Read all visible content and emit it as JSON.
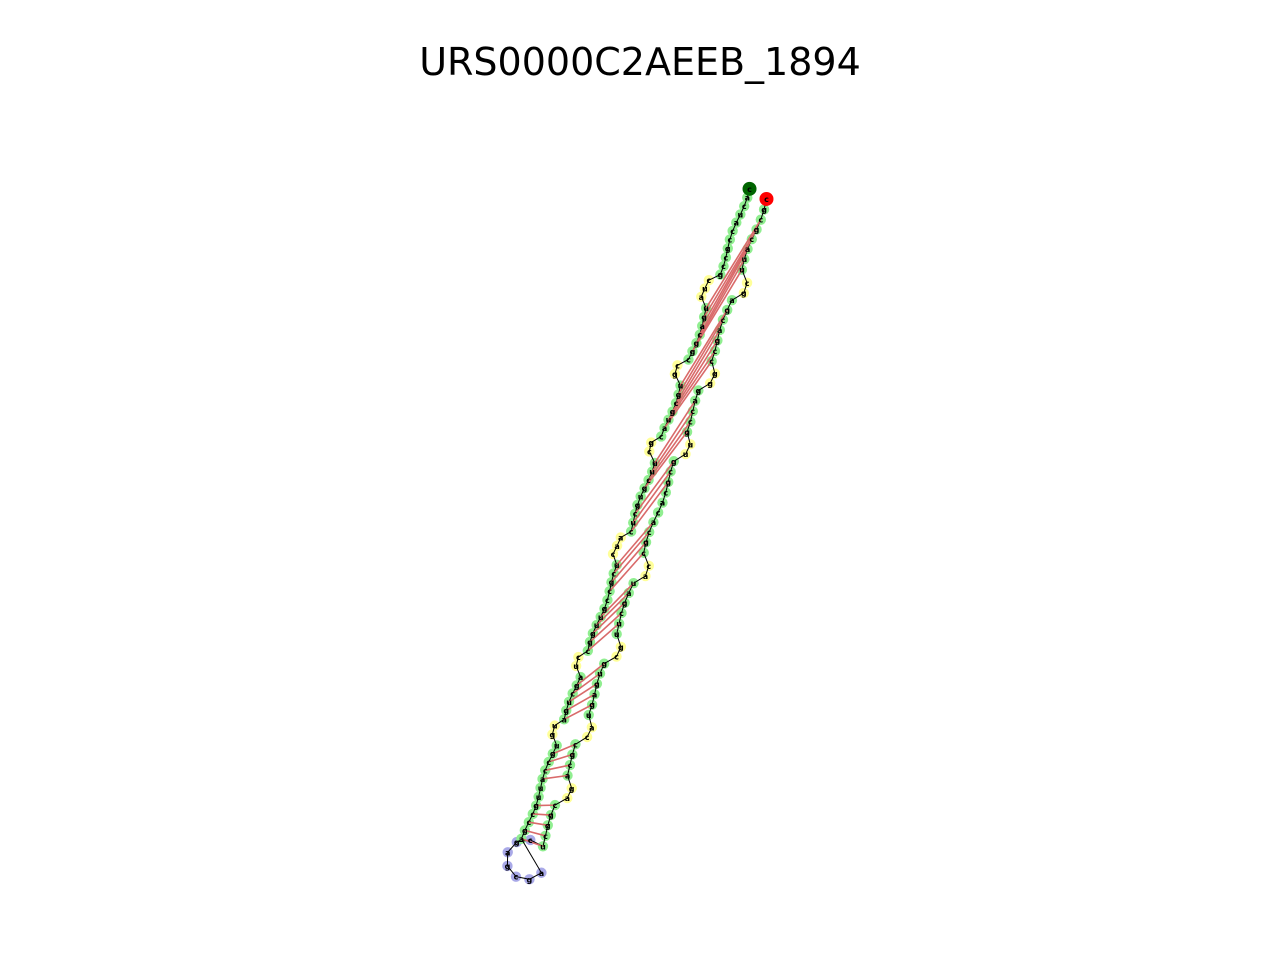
{
  "title": "URS0000C2AEEB_1894",
  "colors": {
    "paired_halo": "#90ee90",
    "unpaired_halo": "#ffff99",
    "hairpin_loop_halo": "#a9a9e8",
    "pair_bond": "#d96a6a",
    "backbone": "#000000",
    "start_marker": "#ff0000",
    "end_marker": "#006400"
  },
  "strand_5prime": [
    "c",
    "g",
    "c",
    "g",
    "c",
    "a",
    "u",
    "u",
    "c",
    "g",
    "a",
    "g",
    "c",
    "a",
    "g",
    "c",
    "c",
    "g",
    "g",
    "g",
    "a",
    "c",
    "c",
    "g",
    "u",
    "u",
    "g",
    "c",
    "g",
    "c",
    "a",
    "c",
    "a",
    "c",
    "g",
    "c",
    "c",
    "a",
    "u",
    "a",
    "g",
    "c",
    "u",
    "u",
    "g",
    "c",
    "g",
    "u",
    "g",
    "a",
    "g",
    "u",
    "a",
    "c",
    "c",
    "g",
    "c",
    "a",
    "g",
    "a",
    "c",
    "g",
    "g",
    "c",
    "u"
  ],
  "hairpin_loop": [
    "c",
    "g",
    "a",
    "g",
    "c",
    "g",
    "a"
  ],
  "strand_3prime": [
    "a",
    "g",
    "c",
    "c",
    "g",
    "u",
    "u",
    "a",
    "c",
    "c",
    "g",
    "u",
    "g",
    "u",
    "a",
    "g",
    "u",
    "c",
    "g",
    "a",
    "u",
    "c",
    "c",
    "g",
    "g",
    "u",
    "u",
    "g",
    "c",
    "c",
    "g",
    "c",
    "u",
    "c",
    "a",
    "a",
    "c",
    "u",
    "c",
    "g",
    "u",
    "g",
    "c",
    "u",
    "u",
    "c",
    "g",
    "c",
    "a",
    "u",
    "g",
    "c",
    "g",
    "u",
    "g",
    "c",
    "c",
    "g",
    "g",
    "c",
    "a",
    "g",
    "u",
    "a",
    "u",
    "c",
    "g",
    "c",
    "c",
    "g",
    "c",
    "c",
    "a",
    "u",
    "c",
    "a",
    "c"
  ]
}
